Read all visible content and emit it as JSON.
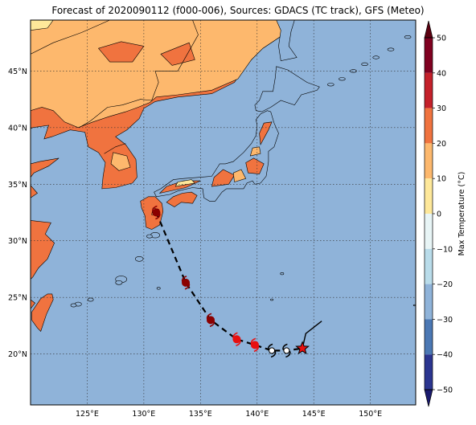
{
  "title": "Forecast of 2020090112 (f000-006), Sources: GDACS (TC track), GFS (Meteo)",
  "colors": {
    "ocean": "#8fb3d9",
    "land_20_30": "#f0733f",
    "land_10_20": "#fdb86d",
    "land_0_10": "#fee89a",
    "track_line": "#000000",
    "marker_dark": "#8b0000",
    "marker_red": "#e81010",
    "star": "#e81010"
  },
  "map": {
    "lon_range": [
      120,
      154
    ],
    "lat_range": [
      15.5,
      49.5
    ],
    "lon_ticks": [
      {
        "value": 125,
        "label": "125°E"
      },
      {
        "value": 130,
        "label": "130°E"
      },
      {
        "value": 135,
        "label": "135°E"
      },
      {
        "value": 140,
        "label": "140°E"
      },
      {
        "value": 145,
        "label": "145°E"
      },
      {
        "value": 150,
        "label": "150°E"
      }
    ],
    "lat_ticks": [
      {
        "value": 20,
        "label": "20°N"
      },
      {
        "value": 25,
        "label": "25°N"
      },
      {
        "value": 30,
        "label": "30°N"
      },
      {
        "value": 35,
        "label": "35°N"
      },
      {
        "value": 40,
        "label": "40°N"
      },
      {
        "value": 45,
        "label": "45°N"
      }
    ]
  },
  "track": {
    "forecast_points": [
      {
        "lon": 131.1,
        "lat": 32.5,
        "kind": "dark"
      },
      {
        "lon": 133.7,
        "lat": 26.3,
        "kind": "dark"
      },
      {
        "lon": 135.9,
        "lat": 23.0,
        "kind": "dark"
      },
      {
        "lon": 138.2,
        "lat": 21.3,
        "kind": "red"
      },
      {
        "lon": 139.8,
        "lat": 20.8,
        "kind": "red"
      },
      {
        "lon": 141.3,
        "lat": 20.3,
        "kind": "white"
      },
      {
        "lon": 142.6,
        "lat": 20.3,
        "kind": "white"
      }
    ],
    "current_position": {
      "lon": 144.0,
      "lat": 20.5
    },
    "past_track": [
      {
        "lon": 144.0,
        "lat": 20.5
      },
      {
        "lon": 144.3,
        "lat": 21.8
      },
      {
        "lon": 145.7,
        "lat": 22.9
      }
    ]
  },
  "colorbar": {
    "label": "Max Temperature (°C)",
    "ticks": [
      {
        "value": 50,
        "label": "50"
      },
      {
        "value": 40,
        "label": "40"
      },
      {
        "value": 30,
        "label": "30"
      },
      {
        "value": 20,
        "label": "20"
      },
      {
        "value": 10,
        "label": "10"
      },
      {
        "value": 0,
        "label": "0"
      },
      {
        "value": -10,
        "label": "−10"
      },
      {
        "value": -20,
        "label": "−20"
      },
      {
        "value": -30,
        "label": "−30"
      },
      {
        "value": -40,
        "label": "−40"
      },
      {
        "value": -50,
        "label": "−50"
      }
    ],
    "bands": [
      {
        "from": 40,
        "to": 50,
        "color": "#800020"
      },
      {
        "from": 30,
        "to": 40,
        "color": "#c4202a"
      },
      {
        "from": 20,
        "to": 30,
        "color": "#f0733f"
      },
      {
        "from": 10,
        "to": 20,
        "color": "#fdb86d"
      },
      {
        "from": 0,
        "to": 10,
        "color": "#fee89a"
      },
      {
        "from": -10,
        "to": 0,
        "color": "#e8f5f6"
      },
      {
        "from": -20,
        "to": -10,
        "color": "#b9dcea"
      },
      {
        "from": -30,
        "to": -20,
        "color": "#8fb3d9"
      },
      {
        "from": -40,
        "to": -30,
        "color": "#4b78b4"
      },
      {
        "from": -50,
        "to": -40,
        "color": "#2b3590"
      }
    ],
    "extend_max_color": "#5c0010",
    "extend_min_color": "#1a1a6e"
  }
}
